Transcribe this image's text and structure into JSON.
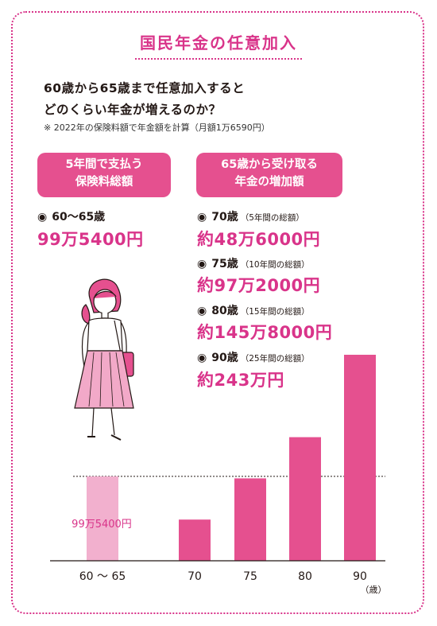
{
  "title": "国民年金の任意加入",
  "lead": {
    "line1": "60歳から65歳まで任意加入すると",
    "line2": "どのくらい年金が増えるのか？",
    "note": "※ 2022年の保険料額で年金額を計算（月額1万6590円）"
  },
  "left_pill": {
    "line1": "5年間で支払う",
    "line2": "保険料総額"
  },
  "right_pill": {
    "line1": "65歳から受け取る",
    "line2": "年金の増加額"
  },
  "paid": {
    "bullet": "◉",
    "label": "60～65歳",
    "amount": "99万5400円"
  },
  "received": [
    {
      "bullet": "◉",
      "age": "70歳",
      "period": "（5年間の総額）",
      "amount": "約48万6000円"
    },
    {
      "bullet": "◉",
      "age": "75歳",
      "period": "（10年間の総額）",
      "amount": "約97万2000円"
    },
    {
      "bullet": "◉",
      "age": "80歳",
      "period": "（15年間の総額）",
      "amount": "約145万8000円"
    },
    {
      "bullet": "◉",
      "age": "90歳",
      "period": "（25年間の総額）",
      "amount": "約243万円"
    }
  ],
  "colors": {
    "accent": "#d9348a",
    "bar": "#e5508f",
    "bar_paid": "#f2b0ce",
    "pill": "#e5508f"
  },
  "chart_data": {
    "type": "bar",
    "categories": [
      "60 ～ 65",
      "70",
      "75",
      "80",
      "90"
    ],
    "values": [
      995400,
      486000,
      972000,
      1458000,
      2430000
    ],
    "unit_label": "（歳）",
    "reference_line_value": 995400,
    "reference_label": "99万5400円",
    "ylim": [
      0,
      2550000
    ],
    "grid": false
  }
}
